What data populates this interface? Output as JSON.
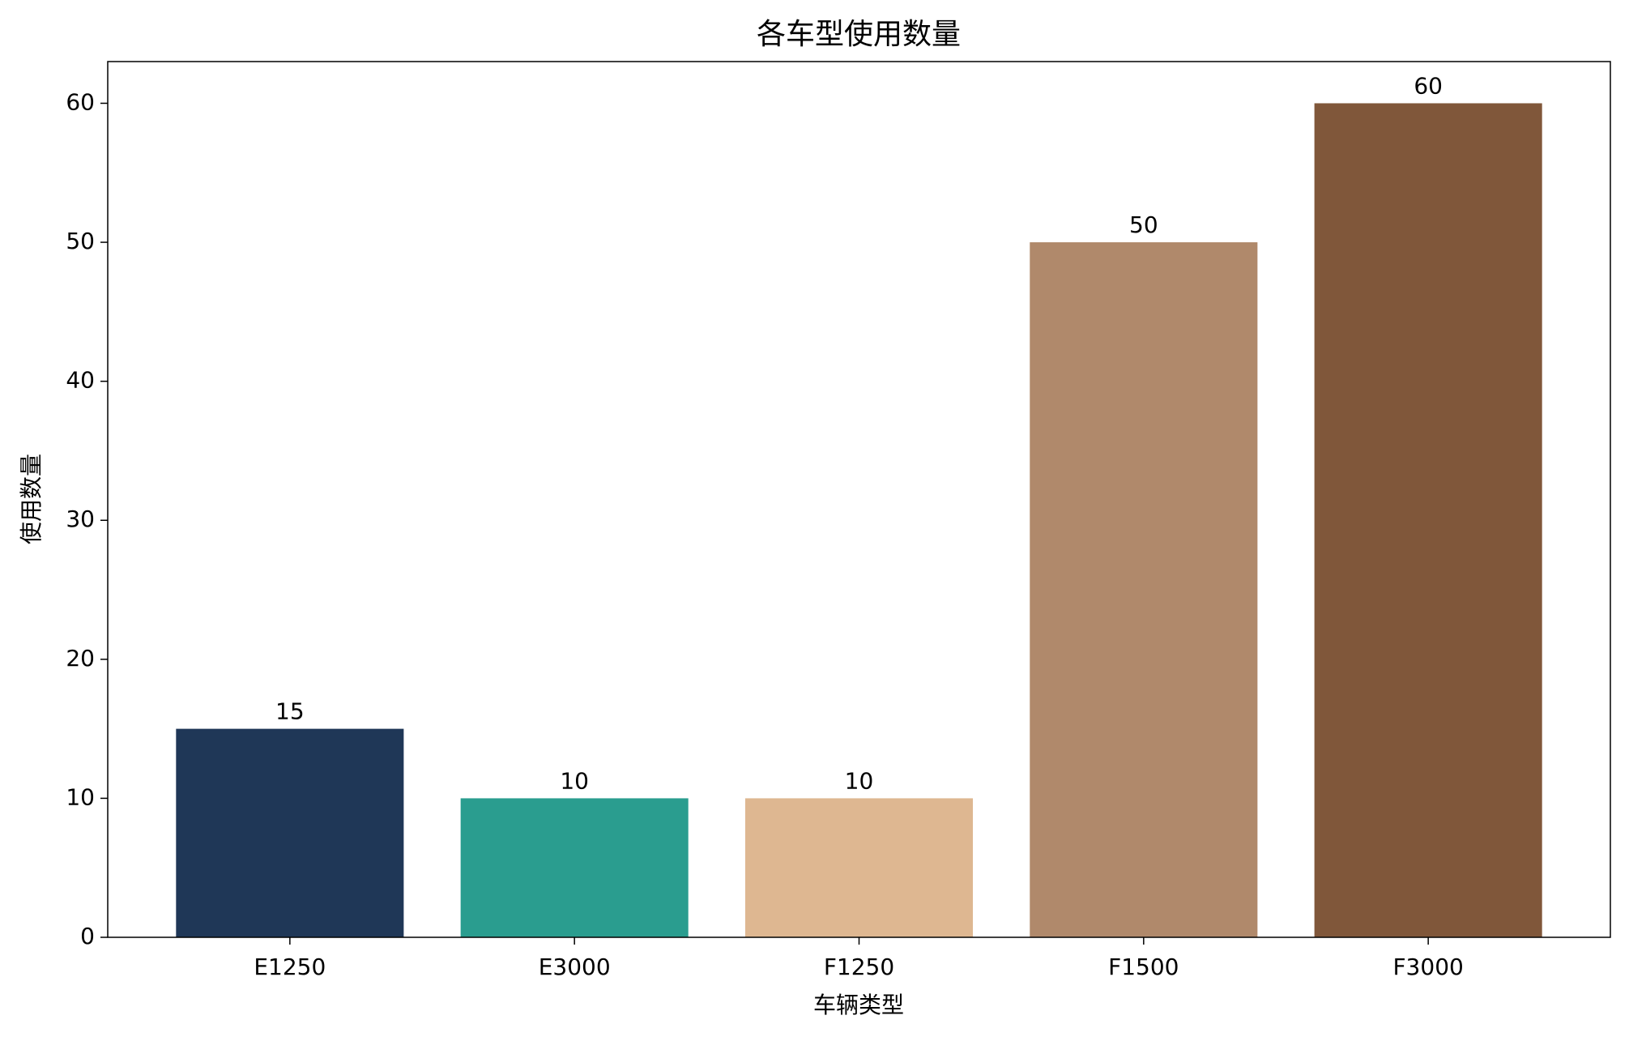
{
  "chart_data": {
    "type": "bar",
    "title": "各车型使用数量",
    "x_label": "车辆类型",
    "y_label": "使用数量",
    "categories": [
      "E1250",
      "E3000",
      "F1250",
      "F1500",
      "F3000"
    ],
    "values": [
      15,
      10,
      10,
      50,
      60
    ],
    "colors": [
      "#1f3757",
      "#2a9d8f",
      "#deb791",
      "#b0896b",
      "#80573a"
    ],
    "ylim": [
      0,
      63
    ],
    "yticks": [
      0,
      10,
      20,
      30,
      40,
      50,
      60
    ],
    "grid": false
  }
}
